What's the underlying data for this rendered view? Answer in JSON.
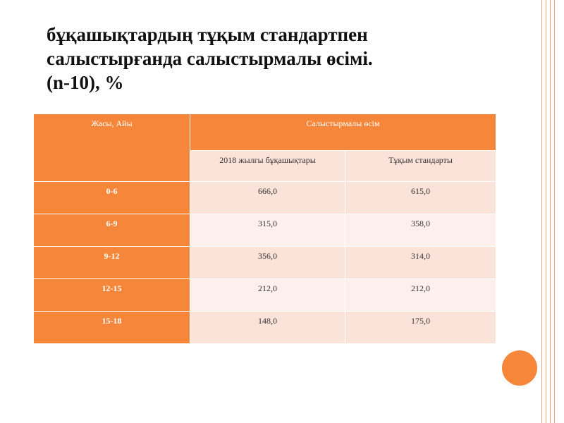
{
  "title": {
    "bullet": "",
    "lines": [
      "бұқашықтардың тұқым стандартпен",
      "салыстырғанда салыстырмалы өсімі.",
      "(n-10), %"
    ]
  },
  "table": {
    "col_age": "Жасы, Айы",
    "col_group": "Салыстырмалы өсім",
    "sub_col1": "2018 жылғы бұқашықтары",
    "sub_col2": "Тұқым стандарты",
    "rows": [
      {
        "age": "0-6",
        "v1": "666,0",
        "v2": "615,0"
      },
      {
        "age": "6-9",
        "v1": "315,0",
        "v2": "358,0"
      },
      {
        "age": "9-12",
        "v1": "356,0",
        "v2": "314,0"
      },
      {
        "age": "12-15",
        "v1": "212,0",
        "v2": "212,0"
      },
      {
        "age": "15-18",
        "v1": "148,0",
        "v2": "175,0"
      }
    ]
  },
  "colors": {
    "accent": "#f6873a",
    "cell_light": "#fbe3da",
    "cell_lighter": "#fdf0ec"
  }
}
